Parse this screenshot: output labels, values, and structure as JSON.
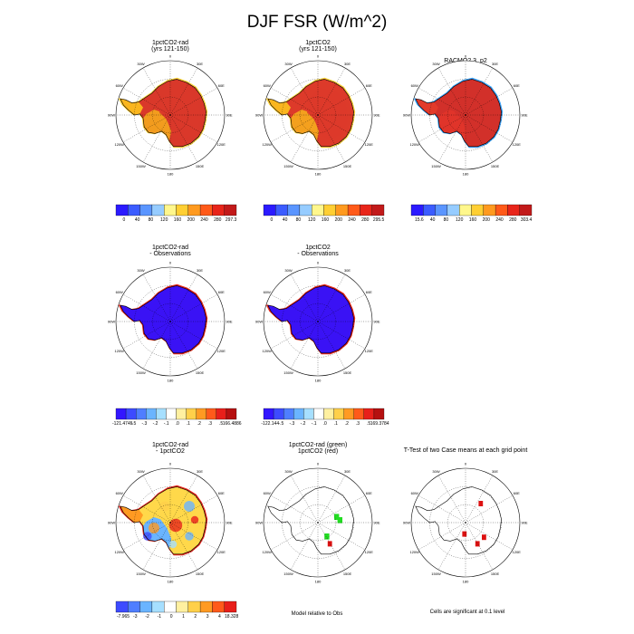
{
  "figure": {
    "title": "DJF FSR (W/m^2)",
    "notes": {
      "model_relative": "Model relative to Obs",
      "significance": "Cells are significant at 0.1 level"
    }
  },
  "lon_labels": {
    "top": "0",
    "bottom": "180",
    "left": "90W",
    "right": "90E",
    "ul1": "30W",
    "ul2": "60W",
    "ur1": "30E",
    "ur2": "60E",
    "ll1": "120W",
    "ll2": "150W",
    "lr1": "120E",
    "lr2": "150E"
  },
  "colors": {
    "ocean": "#ffffff",
    "coast": "#000000",
    "grid": "#000000",
    "abs_scale": [
      "#2b1aff",
      "#3b5cff",
      "#5a95ff",
      "#96ccff",
      "#fff78c",
      "#ffcf33",
      "#ff9a1f",
      "#ff5a19",
      "#e8251a",
      "#c21a1a"
    ],
    "diff_scale": [
      "#3316ff",
      "#3d4bff",
      "#4f7eff",
      "#6ab4ff",
      "#a6dfff",
      "#ffffff",
      "#fff0a0",
      "#ffd04a",
      "#ff9a22",
      "#ff5a1a",
      "#e81f1a",
      "#b51010"
    ],
    "mask_green": "#22dd22",
    "mask_red": "#dd1111"
  },
  "chart_data": [
    {
      "type": "heatmap",
      "id": "p1",
      "title_lines": [
        "1pctCO2-rad",
        "(yrs 121-150)"
      ],
      "colorbar": {
        "labels": [
          "0",
          "40",
          "80",
          "120",
          "160",
          "200",
          "240",
          "280",
          "297.3"
        ]
      },
      "fill": {
        "interior": "#d9382a",
        "west": "#f29c1e",
        "peninsula": "#fab61e",
        "rim": "#ffd23a"
      }
    },
    {
      "type": "heatmap",
      "id": "p2",
      "title_lines": [
        "1pctCO2",
        "(yrs 121-150)"
      ],
      "colorbar": {
        "labels": [
          "0",
          "40",
          "80",
          "120",
          "160",
          "200",
          "240",
          "280",
          "295.5"
        ]
      },
      "fill": {
        "interior": "#dd3a2a",
        "west": "#f4a01e",
        "peninsula": "#fab61e",
        "rim": "#ffd23a"
      }
    },
    {
      "type": "heatmap",
      "id": "p3",
      "title_lines": [
        "RACMO2.3_p2"
      ],
      "colorbar": {
        "labels": [
          "15.6",
          "40",
          "80",
          "120",
          "160",
          "200",
          "240",
          "280",
          "303.4"
        ]
      },
      "fill": {
        "interior": "#d2302a",
        "west": "#e0342a",
        "peninsula": "#e23a2a",
        "rim": "#3fa6ff"
      }
    },
    {
      "type": "heatmap",
      "id": "p4",
      "title_lines": [
        "1pctCO2-rad",
        "- Observations"
      ],
      "colorbar": {
        "labels": [
          "-121.4745",
          "-.5",
          "-.3",
          "-.2",
          "-.1",
          ".0",
          ".1",
          ".2",
          ".3",
          ".5",
          "166.4886"
        ]
      },
      "fill": {
        "interior": "#3a12f5",
        "west": "#3a12f5",
        "peninsula": "#3a12f5",
        "rim": "#e8251a"
      }
    },
    {
      "type": "heatmap",
      "id": "p5",
      "title_lines": [
        "1pctCO2",
        "- Observations"
      ],
      "colorbar": {
        "labels": [
          "-122.144",
          "-.5",
          "-.3",
          "-.2",
          "-.1",
          ".0",
          ".1",
          ".2",
          ".3",
          ".5",
          "169.3784"
        ]
      },
      "fill": {
        "interior": "#3a12f5",
        "west": "#3a12f5",
        "peninsula": "#3a12f5",
        "rim": "#e8251a"
      }
    },
    {
      "type": "heatmap",
      "id": "p6",
      "title_lines": [
        "1pctCO2-rad",
        "- 1pctCO2"
      ],
      "colorbar": {
        "labels": [
          "-7.965",
          "-3",
          "-2",
          "-1",
          "0",
          "1",
          "2",
          "3",
          "4",
          "18.328"
        ]
      },
      "fill": {
        "interior": "#ffd84a",
        "west": "#6ab4ff",
        "peninsula": "#ff9a22",
        "rim": "#e8251a"
      }
    },
    {
      "type": "heatmap",
      "id": "p7",
      "title_lines": [
        "1pctCO2-rad (green)",
        "1pctCO2 (red)"
      ],
      "mask": {
        "green": 3,
        "red": 1
      }
    },
    {
      "type": "heatmap",
      "id": "p8",
      "title_lines": [
        "T-Test of two Case means at each grid point"
      ],
      "mask": {
        "green": 0,
        "red": 4
      }
    }
  ]
}
